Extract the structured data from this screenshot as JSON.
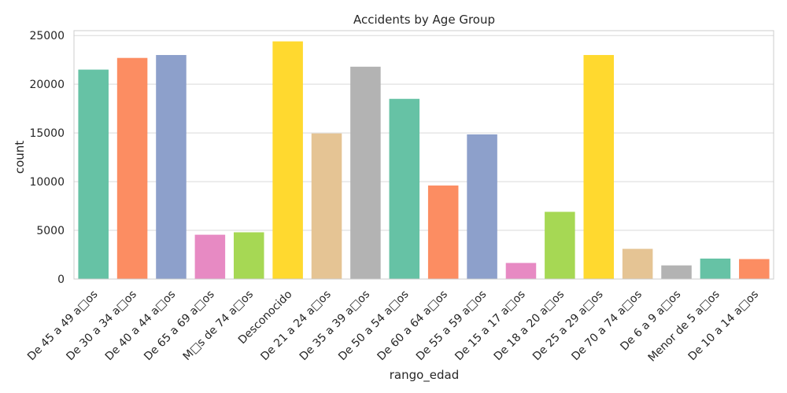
{
  "chart_data": {
    "type": "bar",
    "title": "Accidents by Age Group",
    "xlabel": "rango_edad",
    "ylabel": "count",
    "ylim": [
      0,
      25500
    ],
    "yticks": [
      0,
      5000,
      10000,
      15000,
      20000,
      25000
    ],
    "grid": true,
    "categories": [
      "De 45 a 49 a□os",
      "De 30 a 34 a□os",
      "De 40 a 44 a□os",
      "De 65 a 69 a□os",
      "M□s de 74 a□os",
      "Desconocido",
      "De 21 a 24 a□os",
      "De 35 a 39 a□os",
      "De 50 a 54 a□os",
      "De 60 a 64 a□os",
      "De 55 a 59 a□os",
      "De 15 a 17 a□os",
      "De 18 a 20 a□os",
      "De 25 a 29 a□os",
      "De 70 a 74 a□os",
      "De 6 a 9 a□os",
      "Menor de 5 a□os",
      "De 10 a 14 a□os"
    ],
    "values": [
      21500,
      22700,
      23000,
      4550,
      4800,
      24400,
      14950,
      21800,
      18500,
      9600,
      14850,
      1650,
      6900,
      23000,
      3100,
      1400,
      2100,
      2050
    ],
    "colors": [
      "#66c2a5",
      "#fc8d62",
      "#8da0cb",
      "#e78ac3",
      "#a6d854",
      "#ffd92f",
      "#e5c494",
      "#b3b3b3"
    ]
  }
}
